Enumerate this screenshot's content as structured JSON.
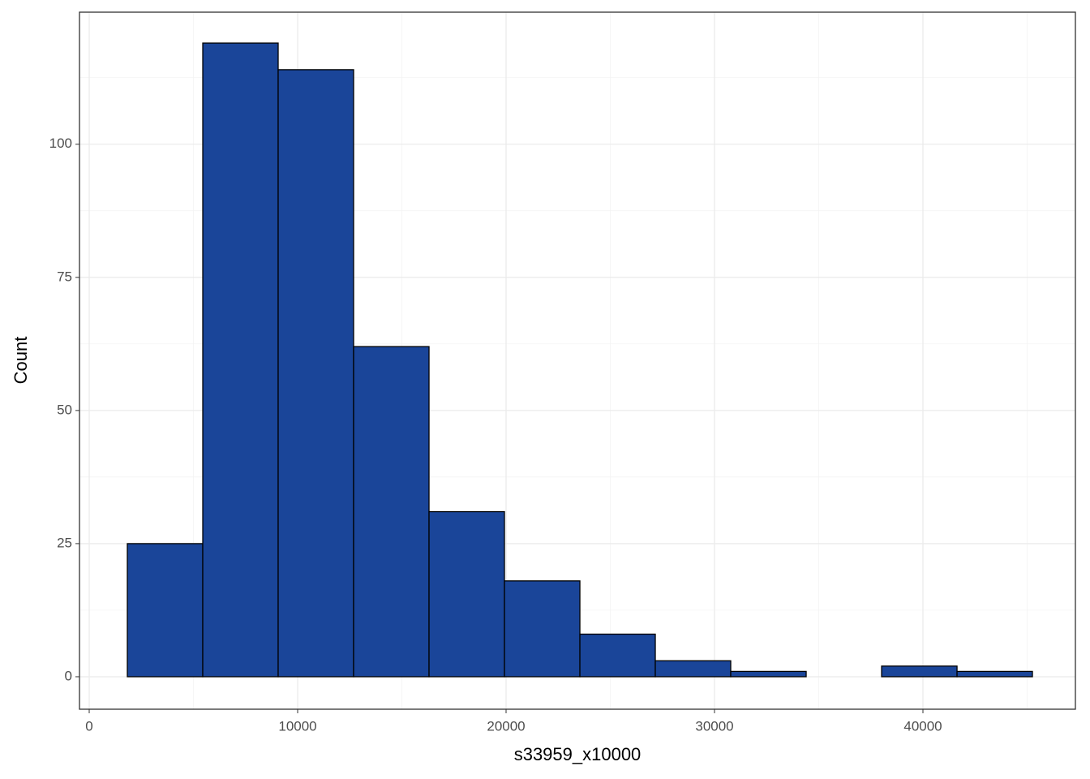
{
  "chart_data": {
    "type": "histogram",
    "x_label": "s33959_x10000",
    "y_label": "Count",
    "bins": [
      1829,
      5448,
      9066,
      12685,
      16304,
      19923,
      23542,
      27160,
      30779,
      34398,
      38017,
      41636,
      45254
    ],
    "values": [
      25,
      119,
      114,
      62,
      31,
      18,
      8,
      3,
      1,
      0,
      2,
      1
    ],
    "color": "#1a4599",
    "edge_color": "#000000",
    "xlim": [
      -467,
      47315
    ],
    "ylim": [
      -6.1,
      124.8
    ],
    "xticks": [
      0,
      10000,
      20000,
      30000,
      40000
    ],
    "yticks": [
      0,
      25,
      50,
      75,
      100
    ],
    "grid": true
  }
}
